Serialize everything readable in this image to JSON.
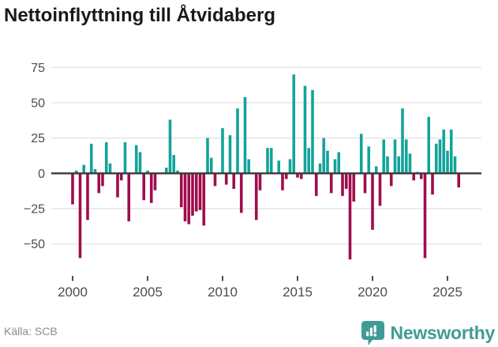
{
  "footer": {
    "source": "Källa: SCB",
    "brand": "Newsworthy"
  },
  "colors": {
    "positive": "#13a39a",
    "negative": "#a00d4d",
    "grid": "#e2e2e2",
    "axis": "#3a3a3a",
    "tick_text": "#4d4d4d",
    "title_text": "#1a1a1a",
    "source_text": "#8c8c8c",
    "brand": "#3e9c94"
  },
  "chart_data": {
    "type": "bar",
    "title": "Nettoinflyttning till Åtvidaberg",
    "frequency": "quarterly",
    "start": "2000 Q1",
    "end": "2025 Q4",
    "grid": true,
    "legend": "none",
    "y_ticks": [
      75,
      50,
      25,
      0,
      -25,
      -50
    ],
    "ylim": [
      -65,
      80
    ],
    "x_tick_years": [
      2000,
      2005,
      2010,
      2015,
      2020,
      2025
    ],
    "values": [
      -22,
      2,
      -60,
      6,
      -33,
      21,
      3,
      -14,
      -9,
      22,
      7,
      0,
      -17,
      -5,
      22,
      -34,
      0,
      20,
      15,
      -19,
      2,
      -21,
      -12,
      0,
      0,
      4,
      38,
      13,
      2,
      -24,
      -34,
      -36,
      -30,
      -27,
      -26,
      -37,
      25,
      11,
      -9,
      0,
      32,
      -8,
      27,
      -11,
      46,
      -28,
      54,
      10,
      0,
      -33,
      -12,
      0,
      18,
      18,
      0,
      9,
      -12,
      -4,
      10,
      70,
      -3,
      -4,
      62,
      18,
      59,
      -16,
      7,
      25,
      16,
      -14,
      10,
      15,
      -16,
      -11,
      -61,
      -20,
      0,
      28,
      -14,
      19,
      -40,
      5,
      -23,
      24,
      12,
      -9,
      24,
      12,
      46,
      24,
      14,
      -5,
      1,
      -4,
      -60,
      40,
      -15,
      21,
      24,
      31,
      16,
      31,
      12,
      -10
    ]
  }
}
